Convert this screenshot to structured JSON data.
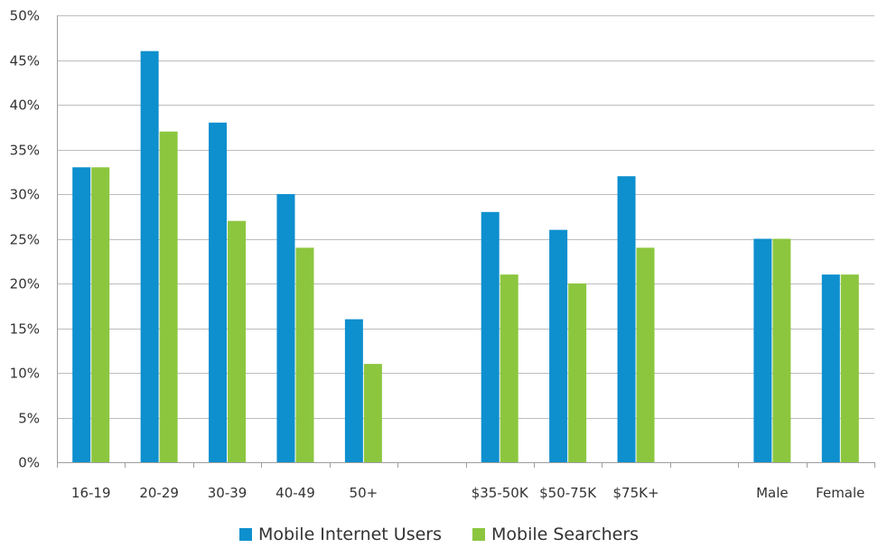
{
  "chart_data": {
    "type": "bar",
    "categories": [
      "16-19",
      "20-29",
      "30-39",
      "40-49",
      "50+",
      "",
      "$35-50K",
      "$50-75K",
      "$75K+",
      "",
      "Male",
      "Female"
    ],
    "series": [
      {
        "name": "Mobile Internet Users",
        "color": "#0e8fce",
        "values": [
          33,
          46,
          38,
          30,
          16,
          null,
          28,
          26,
          32,
          null,
          25,
          21
        ]
      },
      {
        "name": "Mobile Searchers",
        "color": "#8cc63f",
        "values": [
          33,
          37,
          27,
          24,
          11,
          null,
          21,
          20,
          24,
          null,
          25,
          21
        ]
      }
    ],
    "ylim": [
      0,
      50
    ],
    "yticks": [
      "0%",
      "5%",
      "10%",
      "15%",
      "20%",
      "25%",
      "30%",
      "35%",
      "40%",
      "45%",
      "50%"
    ],
    "y_tick_values": [
      0,
      5,
      10,
      15,
      20,
      25,
      30,
      35,
      40,
      45,
      50
    ],
    "grid": true,
    "legend_position": "bottom-center"
  }
}
